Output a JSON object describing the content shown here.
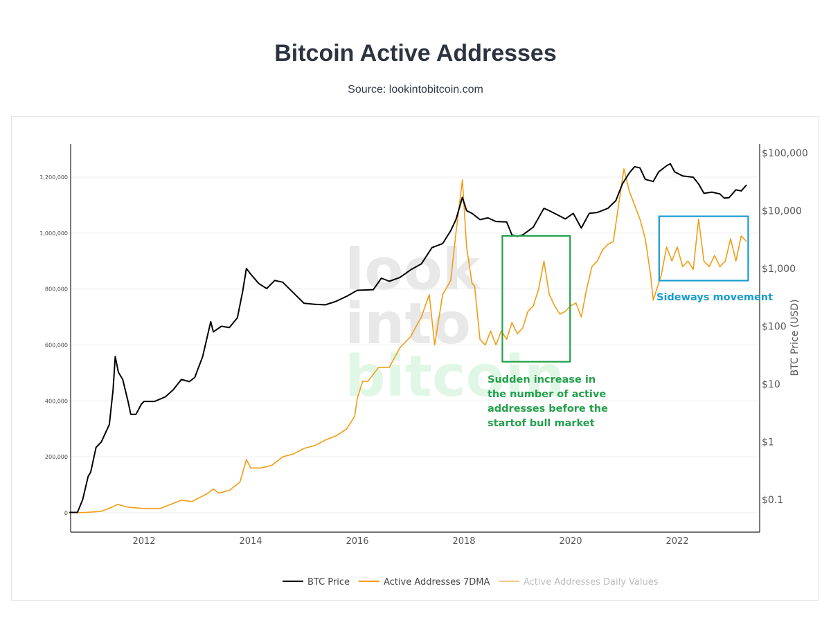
{
  "page": {
    "title": "Bitcoin Active Addresses",
    "subtitle": "Source: lookintobitcoin.com"
  },
  "watermark": [
    "look",
    "into",
    "bitcoin"
  ],
  "colors": {
    "btc_price": "#000000",
    "active_7dma": "#f39c12",
    "active_daily": "#f6c983",
    "green_annotation": "#22a04b",
    "blue_annotation": "#1a9bd0"
  },
  "chart_data": {
    "type": "line",
    "x_ticks": [
      "2012",
      "2014",
      "2016",
      "2018",
      "2020",
      "2022"
    ],
    "xlim": [
      2010.6,
      2023.8
    ],
    "y_left": {
      "label": "",
      "ticks": [
        "0",
        "200,000",
        "400,000",
        "600,000",
        "800,000",
        "1,000,000",
        "1,200,000"
      ],
      "ylim": [
        -70000,
        1320000
      ]
    },
    "y_right": {
      "label": "BTC Price (USD)",
      "scale": "log",
      "ticks": [
        "$0.1",
        "$1",
        "$10",
        "$100",
        "$1,000",
        "$10,000",
        "$100,000"
      ],
      "ylim": [
        0.02,
        200000
      ]
    },
    "series": [
      {
        "name": "BTC Price",
        "axis": "right",
        "points": [
          [
            2010.6,
            0.06
          ],
          [
            2010.75,
            0.06
          ],
          [
            2010.85,
            0.1
          ],
          [
            2010.95,
            0.25
          ],
          [
            2011.0,
            0.3
          ],
          [
            2011.1,
            0.8
          ],
          [
            2011.2,
            1.0
          ],
          [
            2011.35,
            2
          ],
          [
            2011.42,
            8
          ],
          [
            2011.46,
            30
          ],
          [
            2011.52,
            16
          ],
          [
            2011.6,
            12
          ],
          [
            2011.7,
            5
          ],
          [
            2011.75,
            3
          ],
          [
            2011.85,
            3
          ],
          [
            2011.95,
            4.5
          ],
          [
            2012.0,
            5
          ],
          [
            2012.2,
            5
          ],
          [
            2012.4,
            6
          ],
          [
            2012.55,
            8
          ],
          [
            2012.7,
            12
          ],
          [
            2012.85,
            11
          ],
          [
            2012.95,
            13
          ],
          [
            2013.1,
            30
          ],
          [
            2013.25,
            120
          ],
          [
            2013.3,
            80
          ],
          [
            2013.45,
            100
          ],
          [
            2013.6,
            95
          ],
          [
            2013.75,
            140
          ],
          [
            2013.85,
            400
          ],
          [
            2013.92,
            1000
          ],
          [
            2014.0,
            800
          ],
          [
            2014.15,
            550
          ],
          [
            2014.3,
            450
          ],
          [
            2014.45,
            620
          ],
          [
            2014.6,
            580
          ],
          [
            2014.8,
            380
          ],
          [
            2015.0,
            250
          ],
          [
            2015.2,
            240
          ],
          [
            2015.4,
            235
          ],
          [
            2015.6,
            270
          ],
          [
            2015.8,
            330
          ],
          [
            2016.0,
            420
          ],
          [
            2016.3,
            430
          ],
          [
            2016.45,
            680
          ],
          [
            2016.6,
            600
          ],
          [
            2016.8,
            700
          ],
          [
            2017.0,
            950
          ],
          [
            2017.2,
            1200
          ],
          [
            2017.4,
            2300
          ],
          [
            2017.6,
            2700
          ],
          [
            2017.75,
            4500
          ],
          [
            2017.85,
            7000
          ],
          [
            2017.97,
            17000
          ],
          [
            2018.05,
            10000
          ],
          [
            2018.15,
            9000
          ],
          [
            2018.3,
            7000
          ],
          [
            2018.45,
            7500
          ],
          [
            2018.6,
            6500
          ],
          [
            2018.8,
            6400
          ],
          [
            2018.9,
            3800
          ],
          [
            2019.0,
            3600
          ],
          [
            2019.1,
            3800
          ],
          [
            2019.3,
            5200
          ],
          [
            2019.5,
            11000
          ],
          [
            2019.6,
            10000
          ],
          [
            2019.75,
            8500
          ],
          [
            2019.9,
            7200
          ],
          [
            2020.05,
            9000
          ],
          [
            2020.2,
            5000
          ],
          [
            2020.35,
            9000
          ],
          [
            2020.5,
            9300
          ],
          [
            2020.7,
            11000
          ],
          [
            2020.85,
            15000
          ],
          [
            2020.97,
            29000
          ],
          [
            2021.1,
            45000
          ],
          [
            2021.2,
            58000
          ],
          [
            2021.3,
            55000
          ],
          [
            2021.4,
            35000
          ],
          [
            2021.55,
            32000
          ],
          [
            2021.65,
            47000
          ],
          [
            2021.8,
            60000
          ],
          [
            2021.87,
            65000
          ],
          [
            2021.95,
            47000
          ],
          [
            2022.1,
            40000
          ],
          [
            2022.3,
            38000
          ],
          [
            2022.4,
            29000
          ],
          [
            2022.5,
            20000
          ],
          [
            2022.65,
            21000
          ],
          [
            2022.8,
            19500
          ],
          [
            2022.88,
            16500
          ],
          [
            2022.97,
            16800
          ],
          [
            2023.1,
            23000
          ],
          [
            2023.2,
            22000
          ],
          [
            2023.3,
            28000
          ]
        ]
      },
      {
        "name": "Active Addresses 7DMA",
        "axis": "left",
        "points": [
          [
            2010.6,
            0
          ],
          [
            2010.9,
            1000
          ],
          [
            2011.2,
            5000
          ],
          [
            2011.4,
            20000
          ],
          [
            2011.5,
            30000
          ],
          [
            2011.7,
            20000
          ],
          [
            2012.0,
            15000
          ],
          [
            2012.3,
            15000
          ],
          [
            2012.5,
            30000
          ],
          [
            2012.7,
            45000
          ],
          [
            2012.9,
            40000
          ],
          [
            2013.0,
            50000
          ],
          [
            2013.1,
            60000
          ],
          [
            2013.2,
            70000
          ],
          [
            2013.3,
            85000
          ],
          [
            2013.4,
            70000
          ],
          [
            2013.6,
            80000
          ],
          [
            2013.8,
            110000
          ],
          [
            2013.92,
            190000
          ],
          [
            2014.0,
            160000
          ],
          [
            2014.2,
            160000
          ],
          [
            2014.4,
            170000
          ],
          [
            2014.6,
            200000
          ],
          [
            2014.8,
            210000
          ],
          [
            2015.0,
            230000
          ],
          [
            2015.2,
            240000
          ],
          [
            2015.4,
            260000
          ],
          [
            2015.6,
            275000
          ],
          [
            2015.8,
            300000
          ],
          [
            2015.95,
            345000
          ],
          [
            2016.0,
            410000
          ],
          [
            2016.1,
            470000
          ],
          [
            2016.2,
            470000
          ],
          [
            2016.4,
            520000
          ],
          [
            2016.6,
            520000
          ],
          [
            2016.8,
            590000
          ],
          [
            2017.0,
            630000
          ],
          [
            2017.2,
            700000
          ],
          [
            2017.35,
            780000
          ],
          [
            2017.45,
            600000
          ],
          [
            2017.6,
            780000
          ],
          [
            2017.75,
            830000
          ],
          [
            2017.85,
            1000000
          ],
          [
            2017.97,
            1190000
          ],
          [
            2018.05,
            950000
          ],
          [
            2018.15,
            820000
          ],
          [
            2018.2,
            810000
          ],
          [
            2018.3,
            620000
          ],
          [
            2018.4,
            600000
          ],
          [
            2018.5,
            650000
          ],
          [
            2018.6,
            600000
          ],
          [
            2018.7,
            650000
          ],
          [
            2018.8,
            620000
          ],
          [
            2018.9,
            680000
          ],
          [
            2019.0,
            640000
          ],
          [
            2019.1,
            660000
          ],
          [
            2019.2,
            720000
          ],
          [
            2019.3,
            740000
          ],
          [
            2019.4,
            800000
          ],
          [
            2019.5,
            900000
          ],
          [
            2019.6,
            780000
          ],
          [
            2019.7,
            740000
          ],
          [
            2019.8,
            710000
          ],
          [
            2019.9,
            720000
          ],
          [
            2020.0,
            740000
          ],
          [
            2020.1,
            750000
          ],
          [
            2020.2,
            700000
          ],
          [
            2020.3,
            800000
          ],
          [
            2020.4,
            880000
          ],
          [
            2020.5,
            900000
          ],
          [
            2020.6,
            940000
          ],
          [
            2020.7,
            960000
          ],
          [
            2020.8,
            970000
          ],
          [
            2020.9,
            1100000
          ],
          [
            2021.0,
            1230000
          ],
          [
            2021.1,
            1150000
          ],
          [
            2021.2,
            1100000
          ],
          [
            2021.3,
            1050000
          ],
          [
            2021.4,
            980000
          ],
          [
            2021.5,
            850000
          ],
          [
            2021.55,
            760000
          ],
          [
            2021.7,
            850000
          ],
          [
            2021.8,
            950000
          ],
          [
            2021.9,
            900000
          ],
          [
            2022.0,
            950000
          ],
          [
            2022.1,
            880000
          ],
          [
            2022.2,
            900000
          ],
          [
            2022.3,
            870000
          ],
          [
            2022.4,
            1050000
          ],
          [
            2022.5,
            900000
          ],
          [
            2022.6,
            880000
          ],
          [
            2022.7,
            920000
          ],
          [
            2022.8,
            880000
          ],
          [
            2022.9,
            900000
          ],
          [
            2023.0,
            980000
          ],
          [
            2023.1,
            900000
          ],
          [
            2023.2,
            990000
          ],
          [
            2023.3,
            970000
          ]
        ]
      },
      {
        "name": "Active Addresses Daily Values",
        "axis": "left",
        "points": []
      }
    ],
    "legend": {
      "placement": "bottom-center",
      "items": [
        "BTC Price",
        "Active Addresses 7DMA",
        "Active Addresses Daily Values"
      ]
    },
    "annotations": [
      {
        "text_lines": [
          "Sudden increase in",
          "the number of active",
          "addresses before the",
          "startof bull market"
        ],
        "x_range": [
          2018.72,
          2019.99
        ],
        "y_range": [
          540000,
          990000
        ],
        "color": "#22a04b"
      },
      {
        "text_lines": [
          "Sideways movement"
        ],
        "x_range": [
          2021.66,
          2023.33
        ],
        "y_range": [
          830000,
          1060000
        ],
        "color": "#1a9bd0"
      }
    ]
  }
}
